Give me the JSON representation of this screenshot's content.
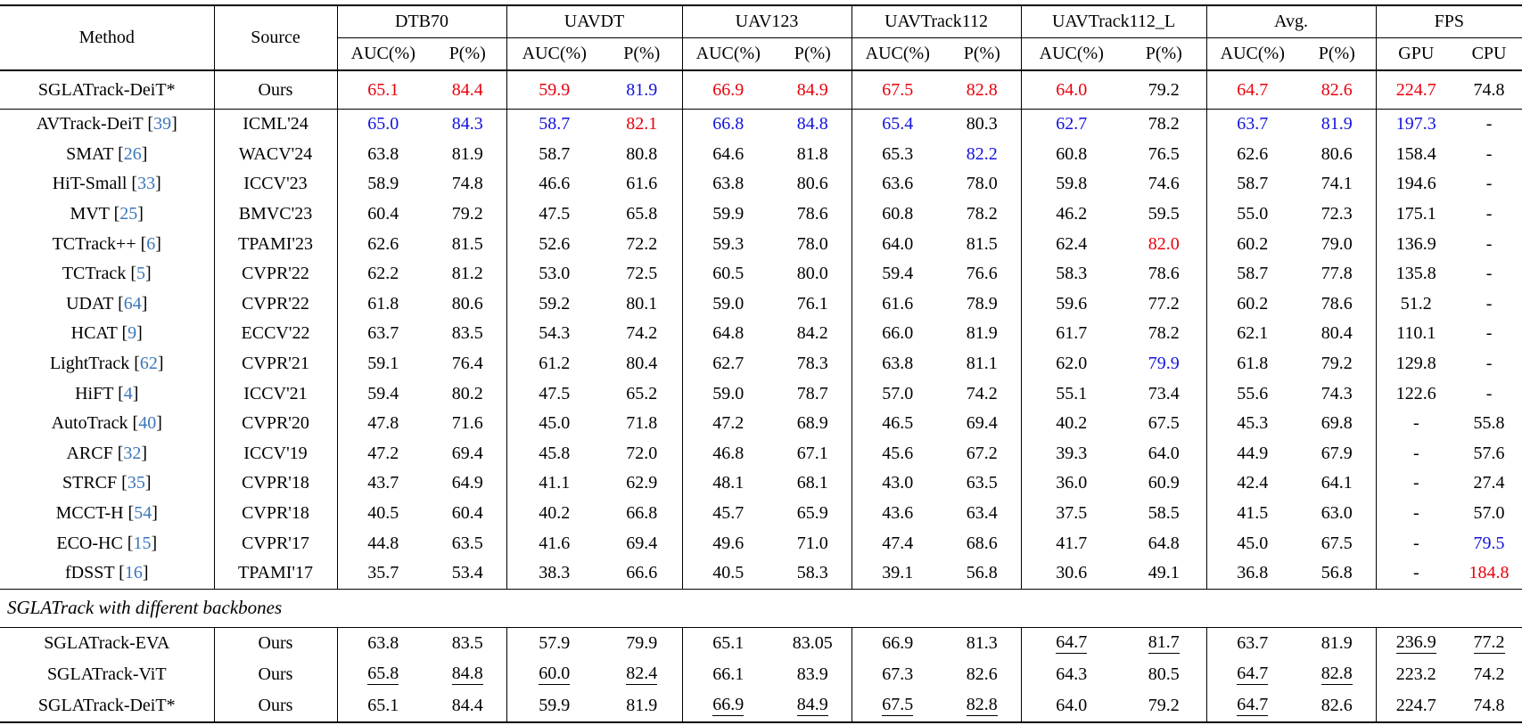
{
  "colors": {
    "best": "#e8000b",
    "second": "#1212dd",
    "cite": "#3b76b8"
  },
  "table": {
    "header": {
      "method": "Method",
      "source": "Source",
      "groups": [
        {
          "label": "DTB70",
          "sub": [
            "AUC(%)",
            "P(%)"
          ],
          "widths": [
            103,
            87
          ]
        },
        {
          "label": "UAVDT",
          "sub": [
            "AUC(%)",
            "P(%)"
          ],
          "widths": [
            107,
            90
          ]
        },
        {
          "label": "UAV123",
          "sub": [
            "AUC(%)",
            "P(%)"
          ],
          "widths": [
            103,
            87
          ]
        },
        {
          "label": "UAVTrack112",
          "sub": [
            "AUC(%)",
            "P(%)"
          ],
          "widths": [
            103,
            87
          ]
        },
        {
          "label": "UAVTrack112_L",
          "sub": [
            "AUC(%)",
            "P(%)"
          ],
          "widths": [
            113,
            95
          ]
        },
        {
          "label": "Avg.",
          "sub": [
            "AUC(%)",
            "P(%)"
          ],
          "widths": [
            103,
            87
          ]
        },
        {
          "label": "FPS",
          "sub": [
            "GPU",
            "CPU"
          ],
          "widths": [
            90,
            74
          ]
        }
      ],
      "method_width": 240,
      "source_width": 138
    },
    "section_label": "SGLATrack with different backbones",
    "rows_main": [
      {
        "method": "SGLATrack-DeiT*",
        "source": "Ours",
        "cells": [
          {
            "v": "65.1",
            "s": "r"
          },
          {
            "v": "84.4",
            "s": "r"
          },
          {
            "v": "59.9",
            "s": "r"
          },
          {
            "v": "81.9",
            "s": "b"
          },
          {
            "v": "66.9",
            "s": "r"
          },
          {
            "v": "84.9",
            "s": "r"
          },
          {
            "v": "67.5",
            "s": "r"
          },
          {
            "v": "82.8",
            "s": "r"
          },
          {
            "v": "64.0",
            "s": "r"
          },
          "79.2",
          {
            "v": "64.7",
            "s": "r"
          },
          {
            "v": "82.6",
            "s": "r"
          },
          {
            "v": "224.7",
            "s": "r"
          },
          "74.8"
        ]
      },
      {
        "method": "AVTrack-DeiT",
        "cite": "39",
        "source": "ICML'24",
        "cells": [
          {
            "v": "65.0",
            "s": "b"
          },
          {
            "v": "84.3",
            "s": "b"
          },
          {
            "v": "58.7",
            "s": "b"
          },
          {
            "v": "82.1",
            "s": "r"
          },
          {
            "v": "66.8",
            "s": "b"
          },
          {
            "v": "84.8",
            "s": "b"
          },
          {
            "v": "65.4",
            "s": "b"
          },
          "80.3",
          {
            "v": "62.7",
            "s": "b"
          },
          "78.2",
          {
            "v": "63.7",
            "s": "b"
          },
          {
            "v": "81.9",
            "s": "b"
          },
          {
            "v": "197.3",
            "s": "b"
          },
          "-"
        ]
      },
      {
        "method": "SMAT",
        "cite": "26",
        "source": "WACV'24",
        "cells": [
          "63.8",
          "81.9",
          "58.7",
          "80.8",
          "64.6",
          "81.8",
          "65.3",
          {
            "v": "82.2",
            "s": "b"
          },
          "60.8",
          "76.5",
          "62.6",
          "80.6",
          "158.4",
          "-"
        ]
      },
      {
        "method": "HiT-Small",
        "cite": "33",
        "source": "ICCV'23",
        "cells": [
          "58.9",
          "74.8",
          "46.6",
          "61.6",
          "63.8",
          "80.6",
          "63.6",
          "78.0",
          "59.8",
          "74.6",
          "58.7",
          "74.1",
          "194.6",
          "-"
        ]
      },
      {
        "method": "MVT",
        "cite": "25",
        "source": "BMVC'23",
        "cells": [
          "60.4",
          "79.2",
          "47.5",
          "65.8",
          "59.9",
          "78.6",
          "60.8",
          "78.2",
          "46.2",
          "59.5",
          "55.0",
          "72.3",
          "175.1",
          "-"
        ]
      },
      {
        "method": "TCTrack++",
        "cite": "6",
        "source": "TPAMI'23",
        "cells": [
          "62.6",
          "81.5",
          "52.6",
          "72.2",
          "59.3",
          "78.0",
          "64.0",
          "81.5",
          "62.4",
          {
            "v": "82.0",
            "s": "r"
          },
          "60.2",
          "79.0",
          "136.9",
          "-"
        ]
      },
      {
        "method": "TCTrack",
        "cite": "5",
        "source": "CVPR'22",
        "cells": [
          "62.2",
          "81.2",
          "53.0",
          "72.5",
          "60.5",
          "80.0",
          "59.4",
          "76.6",
          "58.3",
          "78.6",
          "58.7",
          "77.8",
          "135.8",
          "-"
        ]
      },
      {
        "method": "UDAT",
        "cite": "64",
        "source": "CVPR'22",
        "cells": [
          "61.8",
          "80.6",
          "59.2",
          "80.1",
          "59.0",
          "76.1",
          "61.6",
          "78.9",
          "59.6",
          "77.2",
          "60.2",
          "78.6",
          "51.2",
          "-"
        ]
      },
      {
        "method": "HCAT",
        "cite": "9",
        "source": "ECCV'22",
        "cells": [
          "63.7",
          "83.5",
          "54.3",
          "74.2",
          "64.8",
          "84.2",
          "66.0",
          "81.9",
          "61.7",
          "78.2",
          "62.1",
          "80.4",
          "110.1",
          "-"
        ]
      },
      {
        "method": "LightTrack",
        "cite": "62",
        "source": "CVPR'21",
        "cells": [
          "59.1",
          "76.4",
          "61.2",
          "80.4",
          "62.7",
          "78.3",
          "63.8",
          "81.1",
          "62.0",
          {
            "v": "79.9",
            "s": "b"
          },
          "61.8",
          "79.2",
          "129.8",
          "-"
        ]
      },
      {
        "method": "HiFT",
        "cite": "4",
        "source": "ICCV'21",
        "cells": [
          "59.4",
          "80.2",
          "47.5",
          "65.2",
          "59.0",
          "78.7",
          "57.0",
          "74.2",
          "55.1",
          "73.4",
          "55.6",
          "74.3",
          "122.6",
          "-"
        ]
      },
      {
        "method": "AutoTrack",
        "cite": "40",
        "source": "CVPR'20",
        "cells": [
          "47.8",
          "71.6",
          "45.0",
          "71.8",
          "47.2",
          "68.9",
          "46.5",
          "69.4",
          "40.2",
          "67.5",
          "45.3",
          "69.8",
          "-",
          "55.8"
        ]
      },
      {
        "method": "ARCF",
        "cite": "32",
        "source": "ICCV'19",
        "cells": [
          "47.2",
          "69.4",
          "45.8",
          "72.0",
          "46.8",
          "67.1",
          "45.6",
          "67.2",
          "39.3",
          "64.0",
          "44.9",
          "67.9",
          "-",
          "57.6"
        ]
      },
      {
        "method": "STRCF",
        "cite": "35",
        "source": "CVPR'18",
        "cells": [
          "43.7",
          "64.9",
          "41.1",
          "62.9",
          "48.1",
          "68.1",
          "43.0",
          "63.5",
          "36.0",
          "60.9",
          "42.4",
          "64.1",
          "-",
          "27.4"
        ]
      },
      {
        "method": "MCCT-H",
        "cite": "54",
        "source": "CVPR'18",
        "cells": [
          "40.5",
          "60.4",
          "40.2",
          "66.8",
          "45.7",
          "65.9",
          "43.6",
          "63.4",
          "37.5",
          "58.5",
          "41.5",
          "63.0",
          "-",
          "57.0"
        ]
      },
      {
        "method": "ECO-HC",
        "cite": "15",
        "source": "CVPR'17",
        "cells": [
          "44.8",
          "63.5",
          "41.6",
          "69.4",
          "49.6",
          "71.0",
          "47.4",
          "68.6",
          "41.7",
          "64.8",
          "45.0",
          "67.5",
          "-",
          {
            "v": "79.5",
            "s": "b"
          }
        ]
      },
      {
        "method": "fDSST",
        "cite": "16",
        "source": "TPAMI'17",
        "cells": [
          "35.7",
          "53.4",
          "38.3",
          "66.6",
          "40.5",
          "58.3",
          "39.1",
          "56.8",
          "30.6",
          "49.1",
          "36.8",
          "56.8",
          "-",
          {
            "v": "184.8",
            "s": "r"
          }
        ]
      }
    ],
    "rows_backbones": [
      {
        "method": "SGLATrack-EVA",
        "source": "Ours",
        "cells": [
          "63.8",
          "83.5",
          "57.9",
          "79.9",
          "65.1",
          "83.05",
          "66.9",
          "81.3",
          {
            "v": "64.7",
            "s": "u"
          },
          {
            "v": "81.7",
            "s": "u"
          },
          "63.7",
          "81.9",
          {
            "v": "236.9",
            "s": "u"
          },
          {
            "v": "77.2",
            "s": "u"
          }
        ]
      },
      {
        "method": "SGLATrack-ViT",
        "source": "Ours",
        "cells": [
          {
            "v": "65.8",
            "s": "u"
          },
          {
            "v": "84.8",
            "s": "u"
          },
          {
            "v": "60.0",
            "s": "u"
          },
          {
            "v": "82.4",
            "s": "u"
          },
          "66.1",
          "83.9",
          "67.3",
          "82.6",
          "64.3",
          "80.5",
          {
            "v": "64.7",
            "s": "u"
          },
          {
            "v": "82.8",
            "s": "u"
          },
          "223.2",
          "74.2"
        ]
      },
      {
        "method": "SGLATrack-DeiT*",
        "source": "Ours",
        "cells": [
          "65.1",
          "84.4",
          "59.9",
          "81.9",
          {
            "v": "66.9",
            "s": "u"
          },
          {
            "v": "84.9",
            "s": "u"
          },
          {
            "v": "67.5",
            "s": "u"
          },
          {
            "v": "82.8",
            "s": "u"
          },
          "64.0",
          "79.2",
          {
            "v": "64.7",
            "s": "u"
          },
          "82.6",
          "224.7",
          "74.8"
        ]
      }
    ]
  }
}
